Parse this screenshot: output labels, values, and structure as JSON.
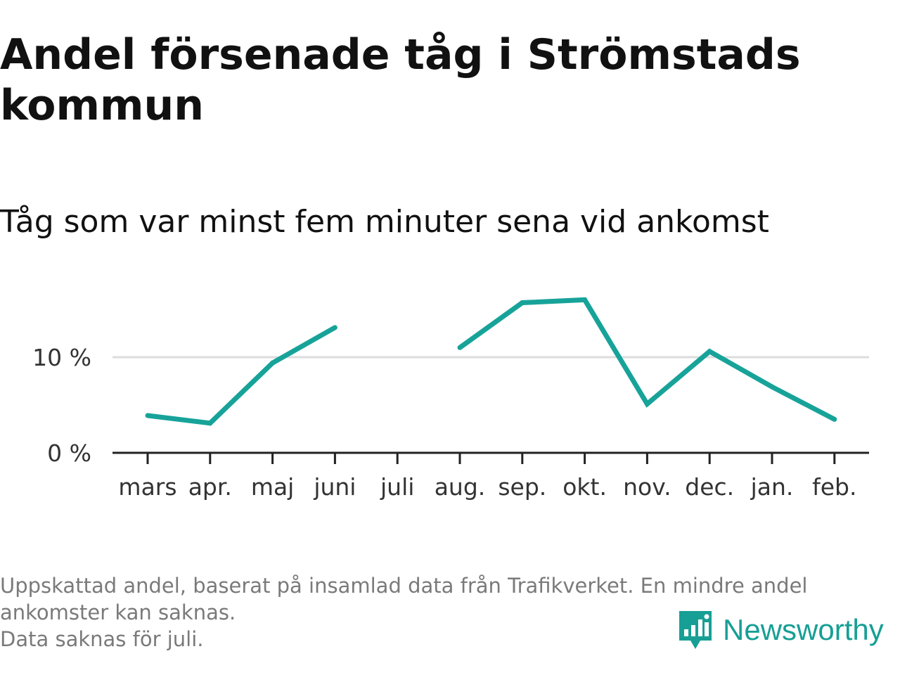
{
  "colors": {
    "line": "#17a399",
    "grid": "#dddddd",
    "axis": "#222222",
    "brand": "#179f95",
    "footnote": "#7a7a7a"
  },
  "chart_data": {
    "type": "line",
    "title": "Andel försenade tåg i Strömstads kommun",
    "subtitle": "Tåg som var minst fem minuter sena vid ankomst",
    "categories": [
      "mars",
      "apr.",
      "maj",
      "juni",
      "juli",
      "aug.",
      "sep.",
      "okt.",
      "nov.",
      "dec.",
      "jan.",
      "feb."
    ],
    "series": [
      {
        "name": "Andel försenade tåg",
        "values": [
          3.9,
          3.1,
          9.4,
          13.1,
          null,
          11.0,
          15.7,
          16.0,
          5.1,
          10.6,
          6.9,
          3.5
        ]
      }
    ],
    "yticks": [
      0,
      10
    ],
    "ytick_labels": [
      "0 %",
      "10 %"
    ],
    "ylim": [
      0,
      20
    ],
    "gridlines": [
      10
    ],
    "xlabel": "",
    "ylabel": ""
  },
  "footnote": {
    "line1": "Uppskattad andel, baserat på insamlad data från Trafikverket. En mindre andel",
    "line2": "ankomster kan saknas.",
    "line3": "Data saknas för juli."
  },
  "brand": {
    "name": "Newsworthy",
    "icon": "newsworthy-logo-icon"
  }
}
